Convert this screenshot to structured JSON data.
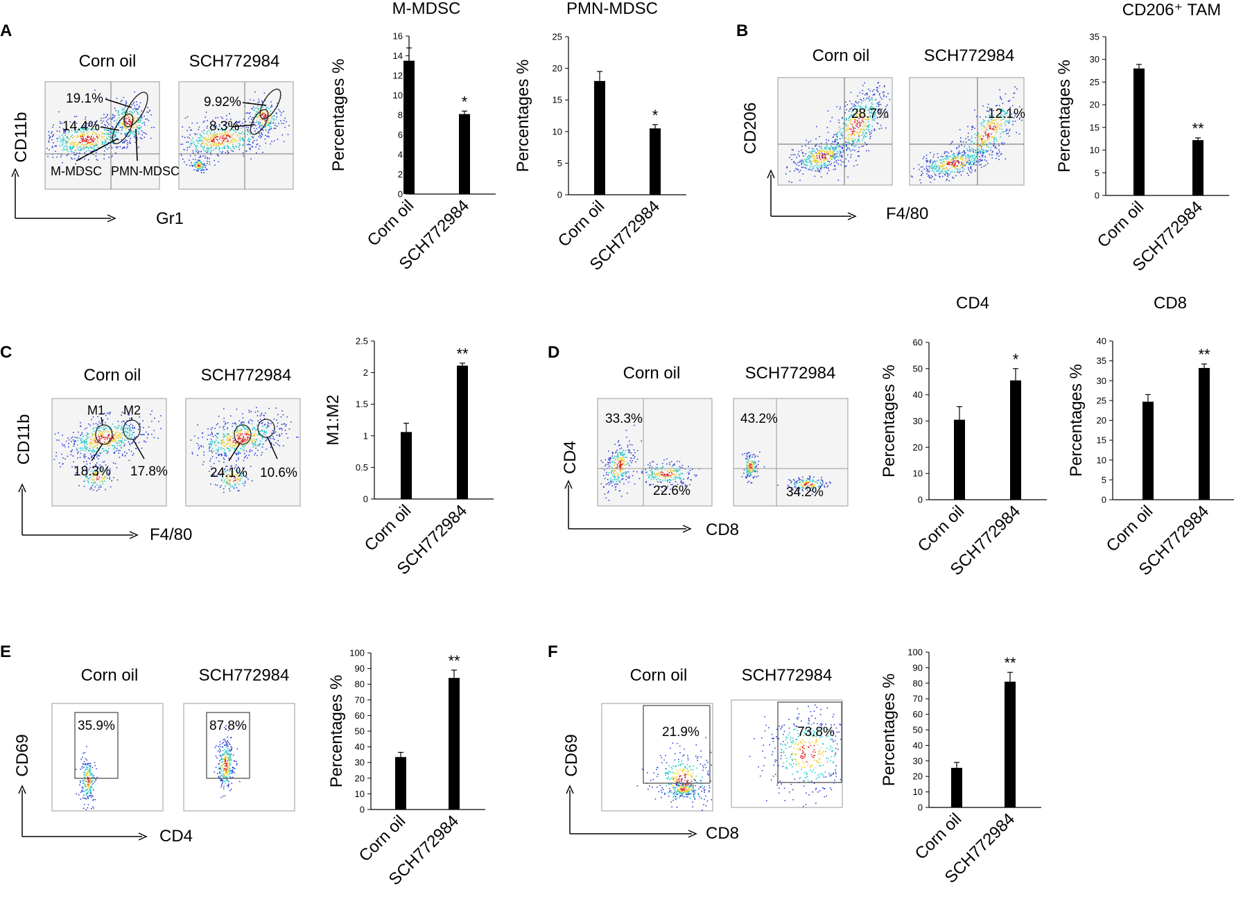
{
  "figure": {
    "panel_labels": [
      "A",
      "B",
      "C",
      "D",
      "E",
      "F"
    ],
    "conditions": [
      "Corn oil",
      "SCH772984"
    ]
  },
  "flow_plots": [
    {
      "panel": "A",
      "y_axis": "CD11b",
      "x_axis": "Gr1",
      "plots": [
        {
          "condition": "Corn oil",
          "gates": [
            "19.1%",
            "14.4%"
          ],
          "gate_names": [
            "M-MDSC",
            "PMN-MDSC"
          ]
        },
        {
          "condition": "SCH772984",
          "gates": [
            "9.92%",
            "8.3%"
          ]
        }
      ]
    },
    {
      "panel": "B",
      "y_axis": "CD206",
      "x_axis": "F4/80",
      "plots": [
        {
          "condition": "Corn oil",
          "gates": [
            "28.7%"
          ]
        },
        {
          "condition": "SCH772984",
          "gates": [
            "12.1%"
          ]
        }
      ]
    },
    {
      "panel": "C",
      "y_axis": "CD11b",
      "x_axis": "F4/80",
      "plots": [
        {
          "condition": "Corn oil",
          "gates": [
            "18.3%",
            "17.8%"
          ],
          "gate_names": [
            "M1",
            "M2"
          ]
        },
        {
          "condition": "SCH772984",
          "gates": [
            "24.1%",
            "10.6%"
          ]
        }
      ]
    },
    {
      "panel": "D",
      "y_axis": "CD4",
      "x_axis": "CD8",
      "plots": [
        {
          "condition": "Corn oil",
          "gates": [
            "33.3%",
            "22.6%"
          ]
        },
        {
          "condition": "SCH772984",
          "gates": [
            "43.2%",
            "34.2%"
          ]
        }
      ]
    },
    {
      "panel": "E",
      "y_axis": "CD69",
      "x_axis": "CD4",
      "plots": [
        {
          "condition": "Corn oil",
          "gates": [
            "35.9%"
          ]
        },
        {
          "condition": "SCH772984",
          "gates": [
            "87.8%"
          ]
        }
      ]
    },
    {
      "panel": "F",
      "y_axis": "CD69",
      "x_axis": "CD8",
      "plots": [
        {
          "condition": "Corn oil",
          "gates": [
            "21.9%"
          ]
        },
        {
          "condition": "SCH772984",
          "gates": [
            "73.8%"
          ]
        }
      ]
    }
  ],
  "chart_data": [
    {
      "id": "a1",
      "type": "bar",
      "panel": "A",
      "title": "M-MDSC",
      "ylabel": "Percentages %",
      "categories": [
        "Corn oil",
        "SCH772984"
      ],
      "values": [
        13.5,
        8.1
      ],
      "errors": [
        1.3,
        0.3
      ],
      "significance": [
        "",
        "*"
      ],
      "ylim": [
        0,
        16
      ],
      "yticks": [
        0,
        2,
        4,
        6,
        8,
        10,
        12,
        14,
        16
      ]
    },
    {
      "id": "a2",
      "type": "bar",
      "panel": "A",
      "title": "PMN-MDSC",
      "ylabel": "Percentages %",
      "categories": [
        "Corn oil",
        "SCH772984"
      ],
      "values": [
        18,
        10.5
      ],
      "errors": [
        1.5,
        0.6
      ],
      "significance": [
        "",
        "*"
      ],
      "ylim": [
        0,
        25
      ],
      "yticks": [
        0,
        5,
        10,
        15,
        20,
        25
      ]
    },
    {
      "id": "b1",
      "type": "bar",
      "panel": "B",
      "title": "CD206⁺ TAM",
      "ylabel": "Percentages %",
      "categories": [
        "Corn oil",
        "SCH772984"
      ],
      "values": [
        28,
        12.2
      ],
      "errors": [
        0.9,
        0.5
      ],
      "significance": [
        "",
        "**"
      ],
      "ylim": [
        0,
        35
      ],
      "yticks": [
        0,
        5,
        10,
        15,
        20,
        25,
        30,
        35
      ]
    },
    {
      "id": "c1",
      "type": "bar",
      "panel": "C",
      "title": "",
      "ylabel": "M1:M2",
      "categories": [
        "Corn oil",
        "SCH772984"
      ],
      "values": [
        1.06,
        2.11
      ],
      "errors": [
        0.14,
        0.04
      ],
      "significance": [
        "",
        "**"
      ],
      "ylim": [
        0,
        2.5
      ],
      "yticks": [
        "0",
        "0.5",
        "1",
        "1.5",
        "2",
        "2.5"
      ]
    },
    {
      "id": "d1",
      "type": "bar",
      "panel": "D",
      "title": "CD4",
      "ylabel": "Percentages %",
      "categories": [
        "Corn oil",
        "SCH772984"
      ],
      "values": [
        30.5,
        45.5
      ],
      "errors": [
        5,
        4.5
      ],
      "significance": [
        "",
        "*"
      ],
      "ylim": [
        0,
        60
      ],
      "yticks": [
        0,
        10,
        20,
        30,
        40,
        50,
        60
      ]
    },
    {
      "id": "d2",
      "type": "bar",
      "panel": "D",
      "title": "CD8",
      "ylabel": "Percentages %",
      "categories": [
        "Corn oil",
        "SCH772984"
      ],
      "values": [
        24.7,
        33.2
      ],
      "errors": [
        1.8,
        1
      ],
      "significance": [
        "",
        "**"
      ],
      "ylim": [
        0,
        40
      ],
      "yticks": [
        0,
        5,
        10,
        15,
        20,
        25,
        30,
        35,
        40
      ]
    },
    {
      "id": "e1",
      "type": "bar",
      "panel": "E",
      "title": "",
      "ylabel": "Percentages %",
      "categories": [
        "Corn oil",
        "SCH772984"
      ],
      "values": [
        33.5,
        84
      ],
      "errors": [
        3,
        5
      ],
      "significance": [
        "",
        "**"
      ],
      "ylim": [
        0,
        100
      ],
      "yticks": [
        0,
        10,
        20,
        30,
        40,
        50,
        60,
        70,
        80,
        90,
        100
      ]
    },
    {
      "id": "f1",
      "type": "bar",
      "panel": "F",
      "title": "",
      "ylabel": "Percentages %",
      "categories": [
        "Corn oil",
        "SCH772984"
      ],
      "values": [
        25.5,
        81
      ],
      "errors": [
        3.5,
        6
      ],
      "significance": [
        "",
        "**"
      ],
      "ylim": [
        0,
        100
      ],
      "yticks": [
        0,
        10,
        20,
        30,
        40,
        50,
        60,
        70,
        80,
        90,
        100
      ]
    }
  ],
  "colors": {
    "bar": "#000000",
    "density_low": "#2b3fd6",
    "density_mid": "#1ec8c8",
    "density_high": "#f0d020",
    "density_peak": "#e02020"
  }
}
